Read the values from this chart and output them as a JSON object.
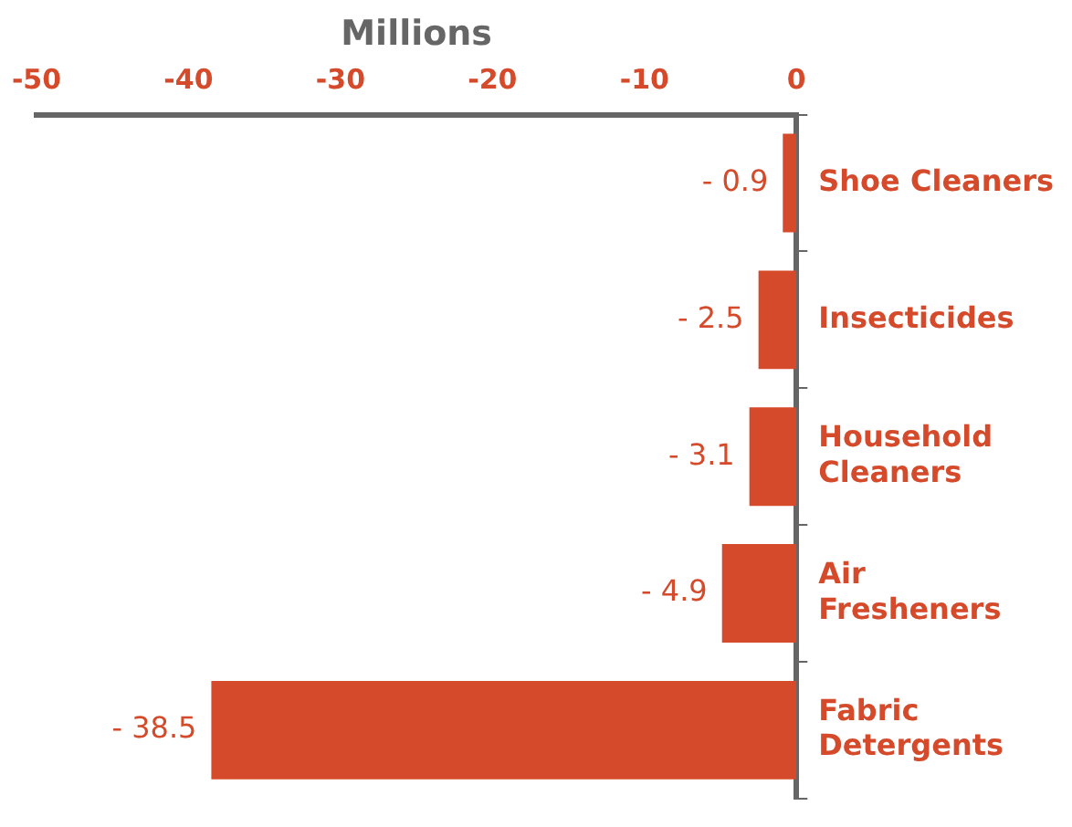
{
  "chart_data": {
    "type": "bar",
    "orientation": "horizontal",
    "xlabel": "Millions",
    "categories": [
      "Shoe Cleaners",
      "Insecticides",
      "Household Cleaners",
      "Air Fresheners",
      "Fabric Detergents"
    ],
    "values": [
      -0.9,
      -2.5,
      -3.1,
      -4.9,
      -38.5
    ],
    "value_labels": [
      "- 0.9",
      "- 2.5",
      "- 3.1",
      "- 4.9",
      "- 38.5"
    ],
    "color": "#d44a2a",
    "xlim": [
      -50,
      0
    ],
    "xticks": [
      -50,
      -40,
      -30,
      -20,
      -10,
      0
    ],
    "grid": false,
    "legend": false
  }
}
